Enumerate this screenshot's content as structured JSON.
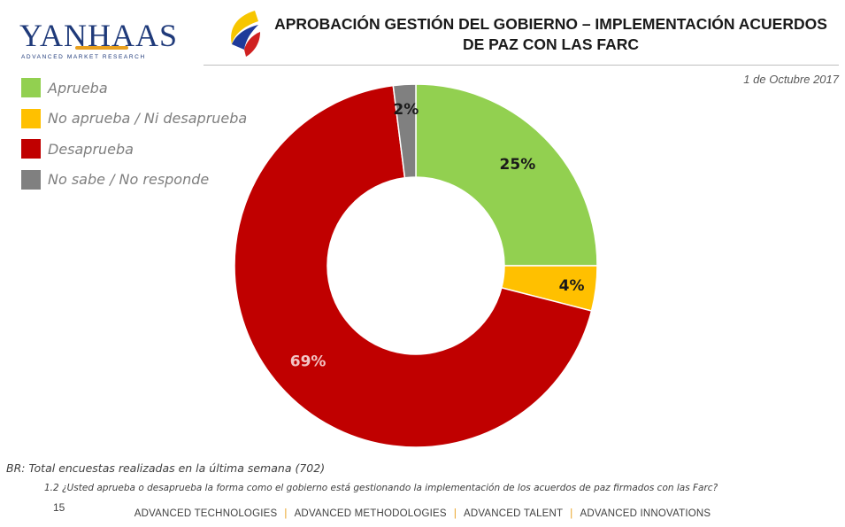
{
  "brand": {
    "name": "YANHAAS",
    "tagline": "ADVANCED MARKET RESEARCH",
    "colors": {
      "navy": "#1f3a7a",
      "gold": "#e8a020"
    }
  },
  "header": {
    "title_line1": "APROBACIÓN GESTIÓN DEL GOBIERNO – IMPLEMENTACIÓN ACUERDOS",
    "title_line2": "DE PAZ CON LAS FARC",
    "date": "1 de Octubre  2017",
    "icon": "colombia-flag-swoosh-icon"
  },
  "chart_data": {
    "type": "pie",
    "variant": "donut",
    "title": "",
    "legend_position": "top-left",
    "series": [
      {
        "name": "Aprueba",
        "value": 25,
        "label": "25%",
        "color": "#92d050",
        "label_color": "#1a1a1a"
      },
      {
        "name": "No aprueba / Ni desaprueba",
        "value": 4,
        "label": "4%",
        "color": "#ffc000",
        "label_color": "#1a1a1a"
      },
      {
        "name": "Desaprueba",
        "value": 69,
        "label": "69%",
        "color": "#c00000",
        "label_color": "#f2c4c4"
      },
      {
        "name": "No sabe /  No responde",
        "value": 2,
        "label": "2%",
        "color": "#808080",
        "label_color": "#1a1a1a"
      }
    ]
  },
  "footer": {
    "base_note": "BR: Total encuestas realizadas en la última semana (702)",
    "question": "1.2 ¿Usted aprueba o desaprueba la forma como el gobierno está gestionando la implementación de los acuerdos de paz firmados con las Farc?",
    "page_number": "15",
    "items": [
      "ADVANCED TECHNOLOGIES",
      "ADVANCED METHODOLOGIES",
      "ADVANCED TALENT",
      "ADVANCED INNOVATIONS"
    ],
    "separator": "|"
  }
}
